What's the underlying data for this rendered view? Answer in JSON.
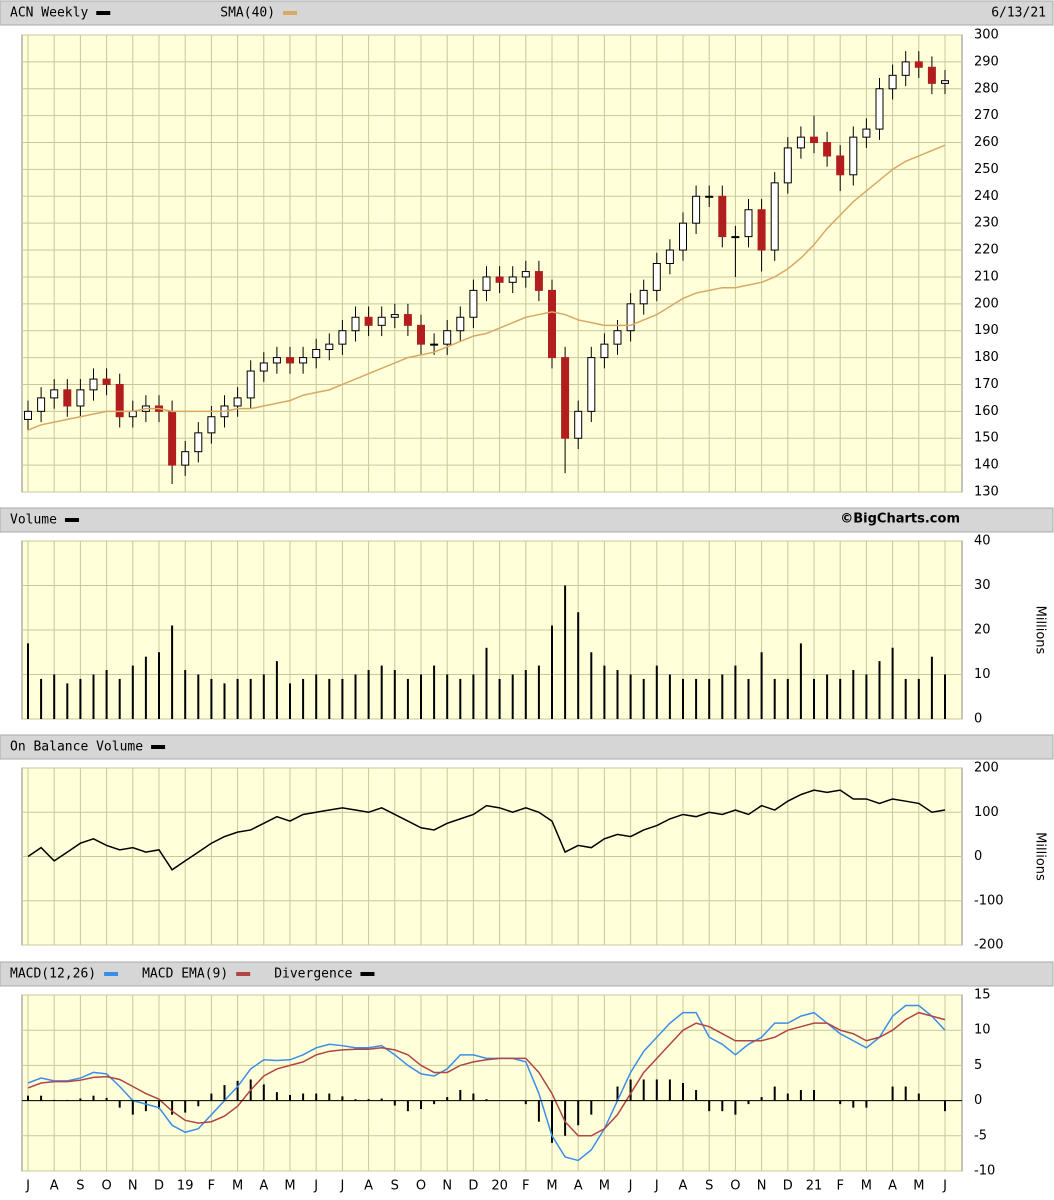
{
  "chart_data": [
    {
      "type": "candlestick",
      "date": "6/13/21",
      "grid": true,
      "up_color": "#ffffff",
      "down_color": "#b21e1e",
      "series": [
        {
          "name": "ACN Weekly",
          "color": "#000000",
          "open": [
            157,
            160,
            165,
            168,
            162,
            168,
            172,
            170,
            158,
            160,
            162,
            160,
            140,
            145,
            152,
            158,
            162,
            165,
            175,
            178,
            180,
            178,
            180,
            183,
            185,
            190,
            195,
            192,
            195,
            196,
            192,
            185,
            185,
            190,
            195,
            205,
            210,
            208,
            210,
            212,
            205,
            180,
            150,
            160,
            180,
            185,
            190,
            200,
            205,
            215,
            220,
            230,
            240,
            240,
            225,
            225,
            235,
            220,
            245,
            258,
            262,
            260,
            255,
            248,
            262,
            265,
            280,
            285,
            290,
            288,
            282
          ],
          "high": [
            164,
            169,
            172,
            172,
            172,
            176,
            176,
            174,
            164,
            166,
            166,
            164,
            149,
            156,
            162,
            166,
            169,
            179,
            182,
            184,
            184,
            184,
            187,
            189,
            194,
            199,
            199,
            199,
            200,
            200,
            196,
            189,
            194,
            199,
            209,
            214,
            214,
            214,
            216,
            216,
            209,
            184,
            164,
            184,
            189,
            194,
            204,
            209,
            219,
            224,
            234,
            244,
            244,
            244,
            229,
            239,
            239,
            249,
            262,
            266,
            270,
            264,
            259,
            266,
            269,
            284,
            289,
            294,
            294,
            292,
            287
          ],
          "low": [
            153,
            156,
            161,
            158,
            158,
            164,
            166,
            154,
            154,
            156,
            156,
            133,
            136,
            141,
            148,
            154,
            158,
            161,
            171,
            174,
            174,
            174,
            176,
            179,
            181,
            186,
            188,
            188,
            191,
            188,
            181,
            181,
            181,
            186,
            191,
            201,
            204,
            204,
            206,
            201,
            176,
            137,
            146,
            156,
            176,
            181,
            186,
            196,
            201,
            211,
            216,
            226,
            236,
            221,
            210,
            221,
            212,
            216,
            241,
            254,
            256,
            251,
            242,
            244,
            258,
            261,
            276,
            281,
            284,
            278,
            278
          ],
          "close": [
            160,
            165,
            168,
            162,
            168,
            172,
            170,
            158,
            160,
            162,
            160,
            140,
            145,
            152,
            158,
            162,
            165,
            175,
            178,
            180,
            178,
            180,
            183,
            185,
            190,
            195,
            192,
            195,
            196,
            192,
            185,
            185,
            190,
            195,
            205,
            210,
            208,
            210,
            212,
            205,
            180,
            150,
            160,
            180,
            185,
            190,
            200,
            205,
            215,
            220,
            230,
            240,
            240,
            225,
            225,
            235,
            220,
            245,
            258,
            262,
            260,
            255,
            248,
            262,
            265,
            280,
            285,
            290,
            288,
            282,
            283
          ]
        },
        {
          "name": "SMA(40)",
          "color": "#d8a865",
          "values": [
            153,
            155,
            156,
            157,
            158,
            159,
            160,
            160,
            160,
            161,
            161,
            160,
            160,
            160,
            160,
            160,
            161,
            161,
            162,
            163,
            164,
            166,
            167,
            168,
            170,
            172,
            174,
            176,
            178,
            180,
            181,
            182,
            184,
            186,
            188,
            189,
            191,
            193,
            195,
            196,
            197,
            196,
            194,
            193,
            192,
            192,
            192,
            194,
            196,
            199,
            202,
            204,
            205,
            206,
            206,
            207,
            208,
            210,
            213,
            217,
            222,
            228,
            233,
            238,
            242,
            246,
            250,
            253,
            255,
            257,
            259
          ]
        }
      ],
      "ylim": [
        130,
        300
      ],
      "yticks": [
        130,
        140,
        150,
        160,
        170,
        180,
        190,
        200,
        210,
        220,
        230,
        240,
        250,
        260,
        270,
        280,
        290,
        300
      ]
    },
    {
      "type": "bar",
      "credit": "©BigCharts.com",
      "grid": true,
      "ylabel": "Millions",
      "series": [
        {
          "name": "Volume",
          "color": "#000000",
          "values": [
            17,
            9,
            10,
            8,
            9,
            10,
            11,
            9,
            12,
            14,
            15,
            21,
            11,
            10,
            9,
            8,
            9,
            9,
            10,
            13,
            8,
            9,
            10,
            9,
            9,
            10,
            11,
            12,
            11,
            9,
            10,
            12,
            10,
            9,
            10,
            16,
            9,
            10,
            11,
            12,
            21,
            30,
            24,
            15,
            12,
            11,
            10,
            9,
            12,
            10,
            9,
            9,
            9,
            10,
            12,
            9,
            15,
            9,
            9,
            17,
            9,
            10,
            9,
            11,
            10,
            13,
            16,
            9,
            9,
            14,
            10
          ]
        }
      ],
      "ylim": [
        0,
        40
      ],
      "yticks": [
        0,
        10,
        20,
        30,
        40
      ]
    },
    {
      "type": "line",
      "grid": true,
      "ylabel": "Millions",
      "series": [
        {
          "name": "On Balance Volume",
          "color": "#000000",
          "values": [
            0,
            20,
            -10,
            10,
            30,
            40,
            25,
            15,
            20,
            10,
            15,
            -30,
            -10,
            10,
            30,
            45,
            55,
            60,
            75,
            90,
            80,
            95,
            100,
            105,
            110,
            105,
            100,
            110,
            95,
            80,
            65,
            60,
            75,
            85,
            95,
            115,
            110,
            100,
            110,
            100,
            80,
            10,
            25,
            20,
            40,
            50,
            45,
            60,
            70,
            85,
            95,
            90,
            100,
            95,
            105,
            95,
            115,
            105,
            125,
            140,
            150,
            145,
            150,
            130,
            130,
            120,
            130,
            125,
            120,
            100,
            105
          ]
        }
      ],
      "ylim": [
        -200,
        200
      ],
      "yticks": [
        -200,
        -100,
        0,
        100,
        200
      ]
    },
    {
      "type": "macd",
      "grid": true,
      "categories": [
        "J",
        null,
        "A",
        null,
        "S",
        null,
        "O",
        null,
        "N",
        null,
        "D",
        null,
        "19",
        null,
        "F",
        null,
        "M",
        null,
        "A",
        null,
        "M",
        null,
        "J",
        null,
        "J",
        null,
        "A",
        null,
        "S",
        null,
        "O",
        null,
        "N",
        null,
        "D",
        null,
        "20",
        null,
        "F",
        null,
        "M",
        null,
        "A",
        null,
        "M",
        null,
        "J",
        null,
        "J",
        null,
        "A",
        null,
        "S",
        null,
        "O",
        null,
        "N",
        null,
        "D",
        null,
        "21",
        null,
        "F",
        null,
        "M",
        null,
        "A",
        null,
        "M",
        null,
        "J"
      ],
      "series": [
        {
          "name": "MACD(12,26)",
          "color": "#3b8ee8",
          "kind": "line",
          "values": [
            2.5,
            3.2,
            2.8,
            2.8,
            3.2,
            4,
            3.8,
            2,
            0,
            -0.5,
            -1,
            -3.5,
            -4.5,
            -4,
            -2,
            0,
            2,
            4.5,
            5.8,
            5.7,
            5.8,
            6.5,
            7.5,
            8,
            7.8,
            7.5,
            7.5,
            7.8,
            6.5,
            5,
            3.8,
            3.5,
            4.5,
            6.5,
            6.5,
            6,
            6,
            6,
            5.5,
            1,
            -5,
            -8,
            -8.5,
            -7,
            -4,
            0,
            4,
            7,
            9,
            11,
            12.5,
            12.5,
            9,
            8,
            6.5,
            8,
            9,
            11,
            11,
            12,
            12.5,
            11,
            9.5,
            8.5,
            7.5,
            9,
            12,
            13.5,
            13.5,
            12,
            10
          ]
        },
        {
          "name": "MACD EMA(9)",
          "color": "#b04545",
          "kind": "line",
          "values": [
            1.8,
            2.5,
            2.7,
            2.7,
            2.9,
            3.3,
            3.4,
            3,
            2,
            1,
            0.2,
            -1.5,
            -2.8,
            -3.2,
            -3,
            -2.2,
            -0.8,
            1.5,
            3.5,
            4.5,
            5,
            5.5,
            6.5,
            7,
            7.2,
            7.3,
            7.3,
            7.5,
            7.2,
            6.5,
            5,
            4,
            4,
            5,
            5.5,
            5.8,
            6,
            6,
            6,
            4,
            1,
            -3,
            -5,
            -5,
            -4,
            -2,
            1,
            4,
            6,
            8,
            10,
            11,
            10.5,
            9.5,
            8.5,
            8.5,
            8.5,
            9,
            10,
            10.5,
            11,
            11,
            10,
            9.5,
            8.5,
            9,
            10,
            11.5,
            12.5,
            12,
            11.5
          ]
        },
        {
          "name": "Divergence",
          "color": "#000000",
          "kind": "bar",
          "values": [
            0.7,
            0.7,
            0.1,
            0.1,
            0.3,
            0.7,
            0.4,
            -1,
            -2,
            -1.5,
            -1.2,
            -2,
            -1.7,
            -0.8,
            1,
            2.2,
            2.8,
            3,
            2.3,
            1.2,
            0.8,
            1,
            1,
            1,
            0.6,
            0.2,
            0.2,
            0.3,
            -0.7,
            -1.5,
            -1.2,
            -0.5,
            0.5,
            1.5,
            1,
            0.2,
            0,
            0,
            -0.5,
            -3,
            -6,
            -5,
            -3.5,
            -2,
            0,
            2,
            3,
            3,
            3,
            3,
            2.5,
            1.5,
            -1.5,
            -1.5,
            -2,
            -0.5,
            0.5,
            2,
            1,
            1.5,
            1.5,
            0,
            -0.5,
            -1,
            -1,
            0,
            2,
            2,
            1,
            0,
            -1.5
          ]
        }
      ],
      "ylim": [
        -10,
        15
      ],
      "yticks": [
        -10,
        -5,
        0,
        5,
        10,
        15
      ]
    }
  ]
}
